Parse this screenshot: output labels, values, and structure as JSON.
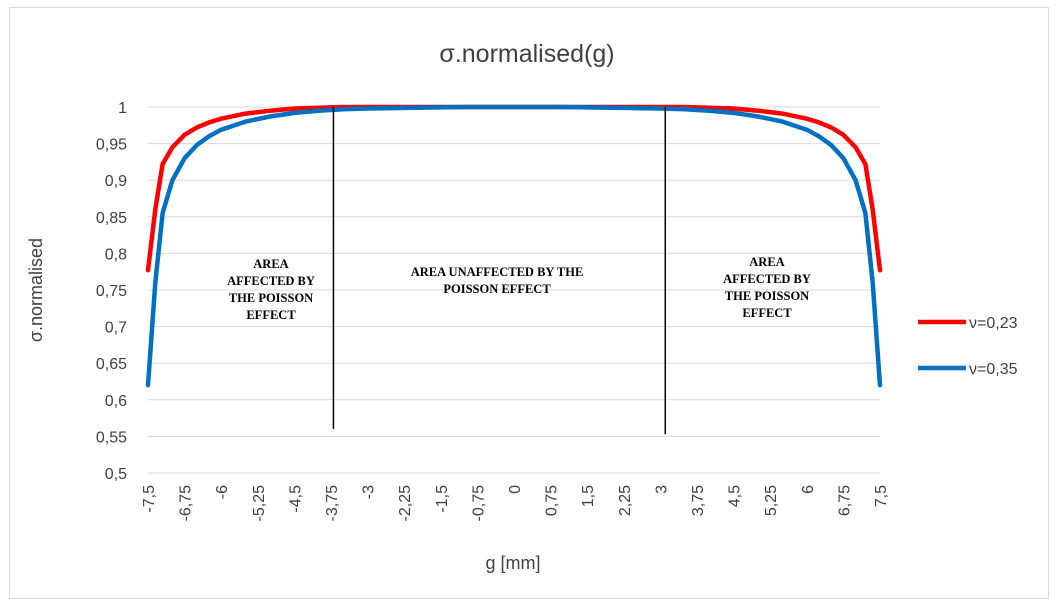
{
  "chart_data": {
    "type": "line",
    "title": "σ.normalised(g)",
    "xlabel": "g [mm]",
    "ylabel": "σ.normalised",
    "ylim": [
      0.5,
      1
    ],
    "yticks": [
      "0,5",
      "0,55",
      "0,6",
      "0,65",
      "0,7",
      "0,75",
      "0,8",
      "0,85",
      "0,9",
      "0,95",
      "1"
    ],
    "xtick_labels": [
      "-7,5",
      "-6,75",
      "-6",
      "-5,25",
      "-4,5",
      "-3,75",
      "-3",
      "-2,25",
      "-1,5",
      "-0,75",
      "0",
      "0,75",
      "1,5",
      "2,25",
      "3",
      "3,75",
      "4,5",
      "5,25",
      "6",
      "6,75",
      "7,5"
    ],
    "xlim": [
      -7.5,
      7.5
    ],
    "grid": true,
    "legend_position": "right",
    "x": [
      -7.5,
      -7.35,
      -7.2,
      -7.0,
      -6.75,
      -6.5,
      -6.25,
      -6.0,
      -5.5,
      -5.0,
      -4.5,
      -4.0,
      -3.5,
      -3.0,
      -2.0,
      -1.0,
      0.0,
      1.0,
      2.0,
      3.0,
      3.5,
      4.0,
      4.5,
      5.0,
      5.5,
      6.0,
      6.25,
      6.5,
      6.75,
      7.0,
      7.2,
      7.35,
      7.5
    ],
    "series": [
      {
        "name": "ν=0,23",
        "color": "#ff0000",
        "values": [
          0.777,
          0.86,
          0.922,
          0.945,
          0.962,
          0.972,
          0.979,
          0.984,
          0.991,
          0.995,
          0.998,
          0.999,
          1.0,
          1.0,
          1.0,
          1.0,
          1.0,
          1.0,
          1.0,
          1.0,
          1.0,
          0.999,
          0.998,
          0.995,
          0.991,
          0.984,
          0.979,
          0.972,
          0.962,
          0.945,
          0.922,
          0.86,
          0.777
        ]
      },
      {
        "name": "ν=0,35",
        "color": "#0070c0",
        "values": [
          0.62,
          0.76,
          0.855,
          0.9,
          0.93,
          0.948,
          0.96,
          0.969,
          0.98,
          0.987,
          0.992,
          0.995,
          0.997,
          0.998,
          0.999,
          1.0,
          1.0,
          1.0,
          0.999,
          0.998,
          0.997,
          0.995,
          0.992,
          0.987,
          0.98,
          0.969,
          0.96,
          0.948,
          0.93,
          0.9,
          0.855,
          0.76,
          0.62
        ]
      }
    ],
    "annotations": {
      "left": [
        "AREA",
        "AFFECTED BY",
        "THE POISSON",
        "EFFECT"
      ],
      "center": [
        "AREA UNAFFECTED BY THE",
        "POISSON EFFECT"
      ],
      "right": [
        "AREA",
        "AFFECTED BY",
        "THE POISSON",
        "EFFECT"
      ]
    },
    "divider_lines": [
      {
        "x": -3.7,
        "y_from": 0.56,
        "y_to": 1.0
      },
      {
        "x": 3.1,
        "y_from": 0.553,
        "y_to": 1.0
      }
    ]
  }
}
